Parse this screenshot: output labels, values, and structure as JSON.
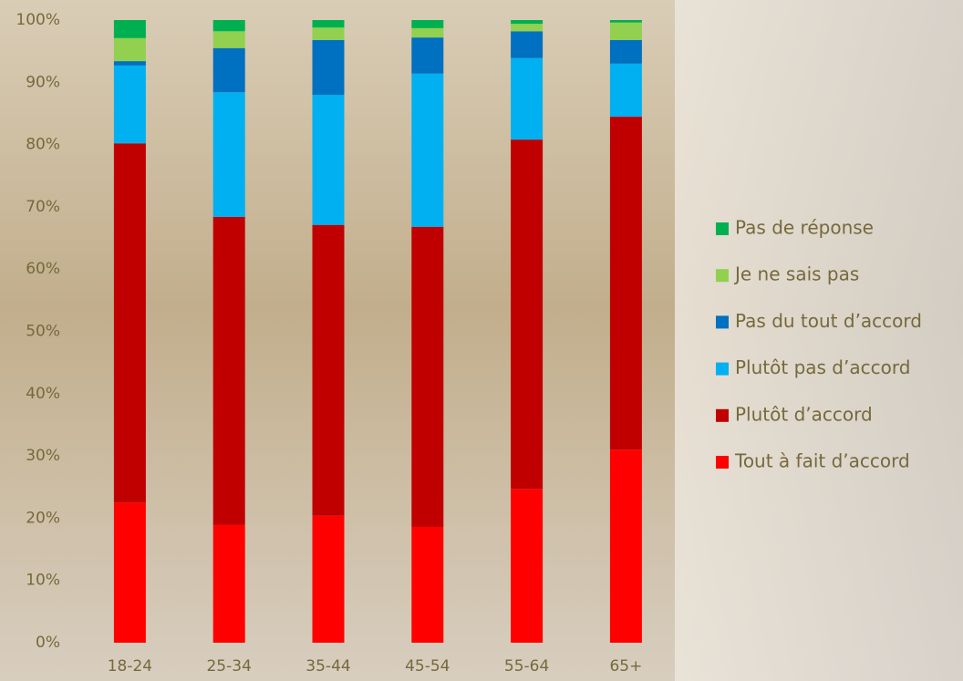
{
  "chart_data": {
    "type": "stacked-bar",
    "categories": [
      "18-24",
      "25-34",
      "35-44",
      "45-54",
      "55-64",
      "65+"
    ],
    "series": [
      {
        "name": "Tout à fait d’accord",
        "color": "#ff0000",
        "values": [
          22.5,
          18.9,
          20.4,
          18.6,
          24.7,
          31.0
        ]
      },
      {
        "name": "Plutôt d’accord",
        "color": "#c00000",
        "values": [
          57.7,
          49.5,
          46.7,
          48.2,
          56.1,
          53.5
        ]
      },
      {
        "name": "Plutôt pas d’accord",
        "color": "#00b0f0",
        "values": [
          12.5,
          20.0,
          20.9,
          24.6,
          13.1,
          8.5
        ]
      },
      {
        "name": "Pas du tout d’accord",
        "color": "#0070c0",
        "values": [
          0.7,
          7.1,
          8.8,
          5.8,
          4.3,
          3.8
        ]
      },
      {
        "name": "Je ne sais pas",
        "color": "#92d050",
        "values": [
          3.7,
          2.7,
          2.0,
          1.5,
          1.2,
          2.8
        ]
      },
      {
        "name": "Pas de réponse",
        "color": "#00b050",
        "values": [
          2.9,
          1.8,
          1.2,
          1.3,
          0.6,
          0.4
        ]
      }
    ],
    "ylim": [
      0,
      100
    ],
    "yticks": [
      {
        "value": 0,
        "label": "0%"
      },
      {
        "value": 10,
        "label": "10%"
      },
      {
        "value": 20,
        "label": "20%"
      },
      {
        "value": 30,
        "label": "30%"
      },
      {
        "value": 40,
        "label": "40%"
      },
      {
        "value": 50,
        "label": "50%"
      },
      {
        "value": 60,
        "label": "60%"
      },
      {
        "value": 70,
        "label": "70%"
      },
      {
        "value": 80,
        "label": "80%"
      },
      {
        "value": 90,
        "label": "90%"
      },
      {
        "value": 100,
        "label": "100%"
      }
    ],
    "grid": false,
    "legend": "right"
  }
}
